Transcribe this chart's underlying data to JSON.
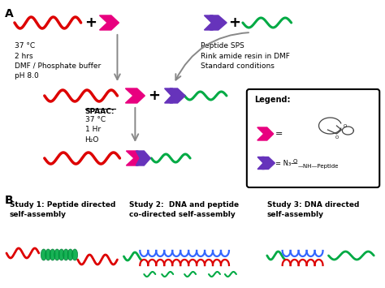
{
  "bg_color": "#ffffff",
  "red_color": "#dd0000",
  "green_color": "#00aa44",
  "pink_color": "#e8007f",
  "purple_color": "#6633bb",
  "blue_color": "#3366ff",
  "arrow_color": "#666666",
  "condition_text_1": "37 °C\n2 hrs\nDMF / Phosphate buffer\npH 8.0",
  "condition_text_2": "Peptide SPS\nRink amide resin in DMF\nStandard conditions",
  "spaac_title": "SPAAC:",
  "condition_text_3": "37 °C\n1 Hr\nH₂O",
  "study1_text": "Study 1: Peptide directed\nself-assembly",
  "study2_text": "Study 2:  DNA and peptide\nco-directed self-assembly",
  "study3_text": "Study 3: DNA directed\nself-assembly",
  "legend_title": "Legend:"
}
